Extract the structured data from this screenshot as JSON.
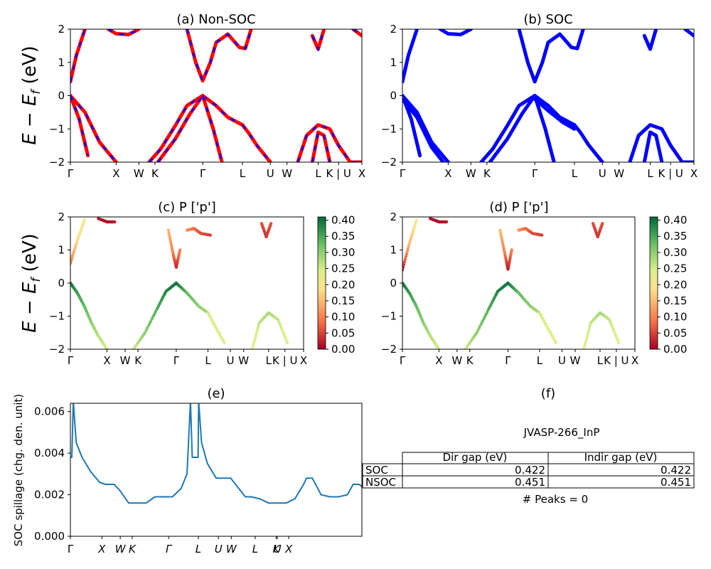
{
  "panels": {
    "a": {
      "title": "(a) Non-SOC"
    },
    "b": {
      "title": "(b) SOC"
    },
    "c": {
      "title": "(c)  P ['p']"
    },
    "d": {
      "title": "(d) P ['p']"
    },
    "e": {
      "title": "(e)"
    },
    "f": {
      "title": "(f)"
    }
  },
  "band_ylabel": "E − E_f (eV)",
  "spillage_ylabel": "SOC spillage (chg. den. unit)",
  "colors": {
    "nonsoc_band": "#ff0000",
    "nonsoc_dash": "#0000ff",
    "soc_band": "#0000ff",
    "spillage_line": "#1f77b4",
    "colormap": [
      "#a50026",
      "#f46d43",
      "#fee08b",
      "#d9ef8b",
      "#66bd63",
      "#006837"
    ]
  },
  "colorbar": {
    "ticks": [
      "0.00",
      "0.05",
      "0.10",
      "0.15",
      "0.20",
      "0.25",
      "0.30",
      "0.35",
      "0.40"
    ],
    "range": [
      0,
      0.41
    ]
  },
  "kpath": {
    "labels": [
      "Γ",
      "X",
      "W",
      "K",
      "Γ",
      "L",
      "U",
      "W",
      "L",
      "K | U",
      "X"
    ],
    "positions": [
      0,
      0.157,
      0.235,
      0.29,
      0.454,
      0.59,
      0.686,
      0.743,
      0.85,
      0.92,
      1.0
    ]
  },
  "spillage_kpath": {
    "labels": [
      "Γ",
      "X",
      "W",
      "K",
      "Γ",
      "L",
      "U",
      "W",
      "L",
      "K",
      "U",
      "X"
    ],
    "positions": [
      0,
      0.108,
      0.171,
      0.212,
      0.337,
      0.439,
      0.508,
      0.552,
      0.634,
      0.706,
      0.71,
      0.749
    ]
  },
  "chart_data": [
    {
      "type": "line",
      "id": "a",
      "title": "(a) Non-SOC",
      "ylabel": "E − E_f (eV)",
      "ylim": [
        -2,
        2
      ],
      "x_ticks": [
        "Γ",
        "X",
        "W",
        "K",
        "Γ",
        "L",
        "U",
        "W",
        "L",
        "K | U",
        "X"
      ],
      "series": [
        {
          "x": [
            0,
            0.05,
            0.1,
            0.157
          ],
          "y": [
            0.0,
            -0.5,
            -1.4,
            -2.0
          ]
        },
        {
          "x": [
            0,
            0.03,
            0.06
          ],
          "y": [
            0.0,
            -0.7,
            -1.8
          ]
        },
        {
          "x": [
            0,
            0.02,
            0.05
          ],
          "y": [
            0.42,
            1.2,
            2.0
          ]
        },
        {
          "x": [
            0.13,
            0.157,
            0.2,
            0.235
          ],
          "y": [
            2.0,
            1.86,
            1.84,
            2.0
          ]
        },
        {
          "x": [
            0.27,
            0.31,
            0.36,
            0.4,
            0.454
          ],
          "y": [
            -2.0,
            -1.6,
            -0.9,
            -0.3,
            0.0
          ]
        },
        {
          "x": [
            0.3,
            0.36,
            0.41,
            0.454
          ],
          "y": [
            -2.0,
            -1.3,
            -0.55,
            0.0
          ]
        },
        {
          "x": [
            0.454,
            0.5,
            0.54,
            0.59
          ],
          "y": [
            0.0,
            -0.3,
            -0.65,
            -0.88
          ]
        },
        {
          "x": [
            0.454,
            0.49,
            0.52
          ],
          "y": [
            0.0,
            -1.0,
            -2.0
          ]
        },
        {
          "x": [
            0.59,
            0.61,
            0.64,
            0.686
          ],
          "y": [
            -0.88,
            -1.1,
            -1.5,
            -2.0
          ]
        },
        {
          "x": [
            0.4,
            0.43,
            0.454,
            0.48,
            0.5
          ],
          "y": [
            2.0,
            1.0,
            0.45,
            1.0,
            1.6
          ]
        },
        {
          "x": [
            0.5,
            0.54,
            0.58,
            0.6,
            0.62
          ],
          "y": [
            1.6,
            1.85,
            1.45,
            1.42,
            2.0
          ]
        },
        {
          "x": [
            0.78,
            0.81,
            0.85,
            0.89,
            0.92,
            0.96,
            1.0
          ],
          "y": [
            -2.0,
            -1.2,
            -0.88,
            -1.0,
            -1.5,
            -2.0,
            -2.0
          ]
        },
        {
          "x": [
            0.83,
            0.85,
            0.87,
            0.89
          ],
          "y": [
            -2.0,
            -1.1,
            -1.2,
            -2.0
          ]
        },
        {
          "x": [
            0.83,
            0.85,
            0.87
          ],
          "y": [
            1.8,
            1.4,
            2.0
          ]
        },
        {
          "x": [
            0.97,
            1.0
          ],
          "y": [
            2.0,
            1.8
          ]
        }
      ]
    },
    {
      "type": "line",
      "id": "b",
      "title": "(b) SOC",
      "ylim": [
        -2,
        2
      ],
      "x_ticks": [
        "Γ",
        "X",
        "W",
        "K",
        "Γ",
        "L",
        "U",
        "W",
        "L",
        "K | U",
        "X"
      ],
      "series": [
        {
          "x": [
            0,
            0.05,
            0.1,
            0.157
          ],
          "y": [
            0.0,
            -0.5,
            -1.4,
            -2.0
          ]
        },
        {
          "x": [
            0,
            0.05,
            0.1,
            0.14
          ],
          "y": [
            -0.1,
            -0.65,
            -1.55,
            -2.0
          ]
        },
        {
          "x": [
            0,
            0.03,
            0.06
          ],
          "y": [
            0.0,
            -0.7,
            -1.8
          ]
        },
        {
          "x": [
            0,
            0.02,
            0.05
          ],
          "y": [
            0.42,
            1.2,
            2.0
          ]
        },
        {
          "x": [
            0.13,
            0.157,
            0.2,
            0.235
          ],
          "y": [
            2.0,
            1.86,
            1.84,
            2.0
          ]
        },
        {
          "x": [
            0.27,
            0.31,
            0.36,
            0.4,
            0.454
          ],
          "y": [
            -2.0,
            -1.6,
            -0.9,
            -0.3,
            0.0
          ]
        },
        {
          "x": [
            0.3,
            0.36,
            0.41,
            0.454
          ],
          "y": [
            -2.0,
            -1.3,
            -0.55,
            0.0
          ]
        },
        {
          "x": [
            0.454,
            0.5,
            0.54,
            0.59
          ],
          "y": [
            0.0,
            -0.3,
            -0.65,
            -0.88
          ]
        },
        {
          "x": [
            0.454,
            0.5,
            0.55,
            0.59
          ],
          "y": [
            -0.1,
            -0.45,
            -0.8,
            -1.0
          ]
        },
        {
          "x": [
            0.454,
            0.49,
            0.52
          ],
          "y": [
            0.0,
            -1.0,
            -2.0
          ]
        },
        {
          "x": [
            0.59,
            0.61,
            0.64,
            0.686
          ],
          "y": [
            -0.88,
            -1.1,
            -1.5,
            -2.0
          ]
        },
        {
          "x": [
            0.4,
            0.43,
            0.454,
            0.48,
            0.5
          ],
          "y": [
            2.0,
            1.0,
            0.42,
            1.0,
            1.6
          ]
        },
        {
          "x": [
            0.5,
            0.54,
            0.58,
            0.6,
            0.62
          ],
          "y": [
            1.6,
            1.85,
            1.45,
            1.42,
            2.0
          ]
        },
        {
          "x": [
            0.78,
            0.81,
            0.85,
            0.89,
            0.92,
            0.96,
            1.0
          ],
          "y": [
            -2.0,
            -1.2,
            -0.88,
            -1.0,
            -1.5,
            -2.0,
            -2.0
          ]
        },
        {
          "x": [
            0.83,
            0.85,
            0.87,
            0.89
          ],
          "y": [
            -2.0,
            -1.1,
            -1.2,
            -2.0
          ]
        },
        {
          "x": [
            0.83,
            0.85,
            0.87
          ],
          "y": [
            1.8,
            1.4,
            2.0
          ]
        },
        {
          "x": [
            0.97,
            1.0
          ],
          "y": [
            2.0,
            1.8
          ]
        }
      ]
    },
    {
      "type": "scatter",
      "id": "c",
      "title": "(c)  P ['p']",
      "ylabel": "E − E_f (eV)",
      "ylim": [
        -2,
        2
      ],
      "colorbar_range": [
        0,
        0.41
      ],
      "series": [
        {
          "x": [
            0,
            0.03,
            0.06,
            0.09,
            0.12,
            0.157
          ],
          "y": [
            0.0,
            -0.3,
            -0.7,
            -1.2,
            -1.6,
            -2.0
          ],
          "c": [
            0.4,
            0.36,
            0.33,
            0.3,
            0.27,
            0.25
          ]
        },
        {
          "x": [
            0,
            0.03,
            0.06
          ],
          "y": [
            0.6,
            1.3,
            1.9
          ],
          "c": [
            0.1,
            0.18,
            0.2
          ]
        },
        {
          "x": [
            0.12,
            0.157,
            0.19
          ],
          "y": [
            1.95,
            1.85,
            1.85
          ],
          "c": [
            0.02,
            0.01,
            0.02
          ]
        },
        {
          "x": [
            0.27,
            0.32,
            0.37,
            0.41,
            0.454
          ],
          "y": [
            -2.0,
            -1.5,
            -0.8,
            -0.25,
            0.0
          ],
          "c": [
            0.25,
            0.3,
            0.34,
            0.38,
            0.4
          ]
        },
        {
          "x": [
            0.454,
            0.5,
            0.55,
            0.59
          ],
          "y": [
            0.0,
            -0.3,
            -0.7,
            -0.9
          ],
          "c": [
            0.4,
            0.33,
            0.3,
            0.28
          ]
        },
        {
          "x": [
            0.59,
            0.62,
            0.66
          ],
          "y": [
            -0.9,
            -1.3,
            -1.8
          ],
          "c": [
            0.25,
            0.24,
            0.23
          ]
        },
        {
          "x": [
            0.42,
            0.44,
            0.454,
            0.47
          ],
          "y": [
            1.6,
            0.9,
            0.48,
            1.0
          ],
          "c": [
            0.15,
            0.1,
            0.03,
            0.1
          ]
        },
        {
          "x": [
            0.5,
            0.53,
            0.56,
            0.6
          ],
          "y": [
            1.6,
            1.65,
            1.5,
            1.45
          ],
          "c": [
            0.12,
            0.08,
            0.06,
            0.05
          ]
        },
        {
          "x": [
            0.78,
            0.81,
            0.85,
            0.89,
            0.93
          ],
          "y": [
            -2.0,
            -1.2,
            -0.9,
            -1.1,
            -1.8
          ],
          "c": [
            0.22,
            0.26,
            0.28,
            0.26,
            0.23
          ]
        },
        {
          "x": [
            0.82,
            0.84,
            0.86
          ],
          "y": [
            1.8,
            1.4,
            1.8
          ],
          "c": [
            0.06,
            0.04,
            0.06
          ]
        }
      ]
    },
    {
      "type": "scatter",
      "id": "d",
      "title": "(d) P ['p']",
      "ylim": [
        -2,
        2
      ],
      "colorbar_range": [
        0,
        0.41
      ],
      "series": [
        {
          "x": [
            0,
            0.03,
            0.06,
            0.09,
            0.12,
            0.157
          ],
          "y": [
            0.0,
            -0.3,
            -0.7,
            -1.2,
            -1.6,
            -2.0
          ],
          "c": [
            0.4,
            0.36,
            0.33,
            0.3,
            0.27,
            0.25
          ]
        },
        {
          "x": [
            0,
            0.03,
            0.06
          ],
          "y": [
            0.4,
            1.2,
            1.9
          ],
          "c": [
            0.02,
            0.15,
            0.2
          ]
        },
        {
          "x": [
            0.12,
            0.157,
            0.19
          ],
          "y": [
            1.95,
            1.85,
            1.85
          ],
          "c": [
            0.02,
            0.01,
            0.02
          ]
        },
        {
          "x": [
            0.27,
            0.32,
            0.37,
            0.41,
            0.454
          ],
          "y": [
            -2.0,
            -1.5,
            -0.8,
            -0.25,
            0.0
          ],
          "c": [
            0.25,
            0.3,
            0.34,
            0.38,
            0.4
          ]
        },
        {
          "x": [
            0.454,
            0.5,
            0.55,
            0.59
          ],
          "y": [
            0.0,
            -0.3,
            -0.7,
            -0.9
          ],
          "c": [
            0.4,
            0.33,
            0.3,
            0.28
          ]
        },
        {
          "x": [
            0.59,
            0.62,
            0.66
          ],
          "y": [
            -0.9,
            -1.3,
            -1.8
          ],
          "c": [
            0.25,
            0.24,
            0.23
          ]
        },
        {
          "x": [
            0.42,
            0.44,
            0.454,
            0.47
          ],
          "y": [
            1.6,
            0.9,
            0.42,
            1.0
          ],
          "c": [
            0.15,
            0.1,
            0.02,
            0.1
          ]
        },
        {
          "x": [
            0.5,
            0.53,
            0.56,
            0.6
          ],
          "y": [
            1.6,
            1.65,
            1.5,
            1.45
          ],
          "c": [
            0.12,
            0.08,
            0.06,
            0.05
          ]
        },
        {
          "x": [
            0.78,
            0.81,
            0.85,
            0.89,
            0.93
          ],
          "y": [
            -2.0,
            -1.2,
            -0.9,
            -1.1,
            -1.8
          ],
          "c": [
            0.22,
            0.26,
            0.28,
            0.26,
            0.23
          ]
        },
        {
          "x": [
            0.82,
            0.84,
            0.86
          ],
          "y": [
            1.8,
            1.4,
            1.8
          ],
          "c": [
            0.06,
            0.04,
            0.06
          ]
        }
      ]
    },
    {
      "type": "line",
      "id": "e",
      "title": "(e)",
      "ylabel": "SOC spillage (chg. den. unit)",
      "ylim": [
        0,
        0.0064
      ],
      "y_ticks": [
        "0.000",
        "0.002",
        "0.004",
        "0.006"
      ],
      "x": [
        0,
        0.005,
        0.01,
        0.02,
        0.04,
        0.07,
        0.1,
        0.12,
        0.15,
        0.17,
        0.2,
        0.23,
        0.26,
        0.29,
        0.32,
        0.35,
        0.38,
        0.4,
        0.412,
        0.418,
        0.438,
        0.44,
        0.45,
        0.47,
        0.5,
        0.53,
        0.55,
        0.6,
        0.62,
        0.65,
        0.68,
        0.71,
        0.74,
        0.77,
        0.8,
        0.81,
        0.83,
        0.86,
        0.89,
        0.92,
        0.95,
        0.97,
        0.99,
        1.0
      ],
      "y": [
        0.0038,
        0.0038,
        0.0065,
        0.0045,
        0.0038,
        0.0031,
        0.0026,
        0.0025,
        0.0025,
        0.0022,
        0.0016,
        0.0016,
        0.0016,
        0.0019,
        0.0019,
        0.0019,
        0.0023,
        0.003,
        0.0065,
        0.0038,
        0.0038,
        0.0065,
        0.0045,
        0.0035,
        0.0028,
        0.0028,
        0.0028,
        0.0019,
        0.0019,
        0.0018,
        0.0016,
        0.0016,
        0.0016,
        0.0018,
        0.0025,
        0.0028,
        0.0028,
        0.002,
        0.0019,
        0.0019,
        0.002,
        0.0025,
        0.0025,
        0.0024
      ]
    }
  ],
  "table": {
    "material": "JVASP-266_InP",
    "headers": [
      "Dir gap (eV)",
      "Indir gap (eV)"
    ],
    "rows": [
      {
        "label": "SOC",
        "dir": "0.422",
        "indir": "0.422"
      },
      {
        "label": "NSOC",
        "dir": "0.451",
        "indir": "0.451"
      }
    ],
    "peaks": "# Peaks = 0"
  }
}
